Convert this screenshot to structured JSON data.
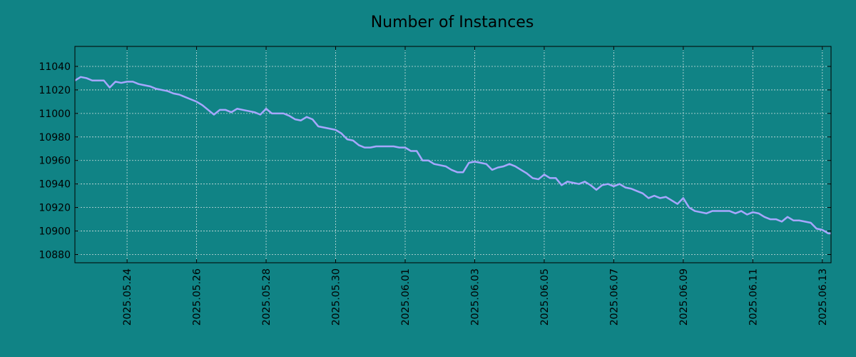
{
  "chart_data": {
    "type": "line",
    "title": "Number of Instances",
    "xlabel": "",
    "ylabel": "",
    "grid": true,
    "colors": {
      "background": "#108385",
      "line": "#a7a7ff",
      "grid": "#cfe0e0",
      "axes": "#000000"
    },
    "x_range": [
      "2025-05-22 12:00",
      "2025-06-13 06:00"
    ],
    "ylim": [
      10873,
      11057
    ],
    "y_ticks": [
      10880,
      10900,
      10920,
      10940,
      10960,
      10980,
      11000,
      11020,
      11040
    ],
    "x_ticks": [
      "2025.05.24",
      "2025.05.26",
      "2025.05.28",
      "2025.05.30",
      "2025.06.01",
      "2025.06.03",
      "2025.06.05",
      "2025.06.07",
      "2025.06.09",
      "2025.06.11",
      "2025.06.13"
    ],
    "series": [
      {
        "x": [
          "2025-05-22 12:00",
          "2025-05-22 16:00",
          "2025-05-22 20:00",
          "2025-05-23 00:00",
          "2025-05-23 04:00",
          "2025-05-23 08:00",
          "2025-05-23 12:00",
          "2025-05-23 16:00",
          "2025-05-23 20:00",
          "2025-05-24 00:00",
          "2025-05-24 04:00",
          "2025-05-24 08:00",
          "2025-05-24 12:00",
          "2025-05-24 16:00",
          "2025-05-24 20:00",
          "2025-05-25 00:00",
          "2025-05-25 04:00",
          "2025-05-25 08:00",
          "2025-05-25 12:00",
          "2025-05-25 16:00",
          "2025-05-25 20:00",
          "2025-05-26 00:00",
          "2025-05-26 04:00",
          "2025-05-26 08:00",
          "2025-05-26 12:00",
          "2025-05-26 16:00",
          "2025-05-26 20:00",
          "2025-05-27 00:00",
          "2025-05-27 04:00",
          "2025-05-27 08:00",
          "2025-05-27 12:00",
          "2025-05-27 16:00",
          "2025-05-27 20:00",
          "2025-05-28 00:00",
          "2025-05-28 04:00",
          "2025-05-28 08:00",
          "2025-05-28 12:00",
          "2025-05-28 16:00",
          "2025-05-28 20:00",
          "2025-05-29 00:00",
          "2025-05-29 04:00",
          "2025-05-29 08:00",
          "2025-05-29 12:00",
          "2025-05-29 16:00",
          "2025-05-29 20:00",
          "2025-05-30 00:00",
          "2025-05-30 04:00",
          "2025-05-30 08:00",
          "2025-05-30 12:00",
          "2025-05-30 16:00",
          "2025-05-30 20:00",
          "2025-05-31 00:00",
          "2025-05-31 04:00",
          "2025-05-31 08:00",
          "2025-05-31 12:00",
          "2025-05-31 16:00",
          "2025-05-31 20:00",
          "2025-06-01 00:00",
          "2025-06-01 04:00",
          "2025-06-01 08:00",
          "2025-06-01 12:00",
          "2025-06-01 16:00",
          "2025-06-01 20:00",
          "2025-06-02 00:00",
          "2025-06-02 04:00",
          "2025-06-02 08:00",
          "2025-06-02 12:00",
          "2025-06-02 16:00",
          "2025-06-02 20:00",
          "2025-06-03 00:00",
          "2025-06-03 04:00",
          "2025-06-03 08:00",
          "2025-06-03 12:00",
          "2025-06-03 16:00",
          "2025-06-03 20:00",
          "2025-06-04 00:00",
          "2025-06-04 04:00",
          "2025-06-04 08:00",
          "2025-06-04 12:00",
          "2025-06-04 16:00",
          "2025-06-04 20:00",
          "2025-06-05 00:00",
          "2025-06-05 04:00",
          "2025-06-05 08:00",
          "2025-06-05 12:00",
          "2025-06-05 16:00",
          "2025-06-05 20:00",
          "2025-06-06 00:00",
          "2025-06-06 04:00",
          "2025-06-06 08:00",
          "2025-06-06 12:00",
          "2025-06-06 16:00",
          "2025-06-06 20:00",
          "2025-06-07 00:00",
          "2025-06-07 04:00",
          "2025-06-07 08:00",
          "2025-06-07 12:00",
          "2025-06-07 16:00",
          "2025-06-07 20:00",
          "2025-06-08 00:00",
          "2025-06-08 04:00",
          "2025-06-08 08:00",
          "2025-06-08 12:00",
          "2025-06-08 16:00",
          "2025-06-08 20:00",
          "2025-06-09 00:00",
          "2025-06-09 04:00",
          "2025-06-09 08:00",
          "2025-06-09 12:00",
          "2025-06-09 16:00",
          "2025-06-09 20:00",
          "2025-06-10 00:00",
          "2025-06-10 04:00",
          "2025-06-10 08:00",
          "2025-06-10 12:00",
          "2025-06-10 16:00",
          "2025-06-10 20:00",
          "2025-06-11 00:00",
          "2025-06-11 04:00",
          "2025-06-11 08:00",
          "2025-06-11 12:00",
          "2025-06-11 16:00",
          "2025-06-11 20:00",
          "2025-06-12 00:00",
          "2025-06-12 04:00",
          "2025-06-12 08:00",
          "2025-06-12 12:00",
          "2025-06-12 16:00",
          "2025-06-12 20:00",
          "2025-06-13 00:00",
          "2025-06-13 04:00",
          "2025-06-13 06:00"
        ],
        "y": [
          11028,
          11031,
          11030,
          11028,
          11028,
          11028,
          11022,
          11027,
          11026,
          11027,
          11027,
          11025,
          11024,
          11023,
          11021,
          11020,
          11019,
          11017,
          11016,
          11014,
          11012,
          11010,
          11007,
          11003,
          10999,
          11003,
          11003,
          11001,
          11004,
          11003,
          11002,
          11001,
          10999,
          11004,
          11000,
          11000,
          11000,
          10998,
          10995,
          10994,
          10997,
          10995,
          10989,
          10988,
          10987,
          10986,
          10983,
          10978,
          10977,
          10973,
          10971,
          10971,
          10972,
          10972,
          10972,
          10972,
          10971,
          10971,
          10968,
          10968,
          10960,
          10960,
          10957,
          10956,
          10955,
          10952,
          10950,
          10950,
          10958,
          10959,
          10958,
          10957,
          10952,
          10954,
          10955,
          10957,
          10955,
          10952,
          10949,
          10945,
          10944,
          10948,
          10945,
          10945,
          10939,
          10942,
          10941,
          10940,
          10942,
          10939,
          10935,
          10939,
          10940,
          10938,
          10940,
          10937,
          10936,
          10934,
          10932,
          10928,
          10930,
          10928,
          10929,
          10926,
          10923,
          10928,
          10920,
          10917,
          10916,
          10915,
          10917,
          10917,
          10917,
          10917,
          10915,
          10917,
          10914,
          10916,
          10915,
          10912,
          10910,
          10910,
          10908,
          10912,
          10909,
          10909,
          10908,
          10907,
          10902,
          10901,
          10898,
          10898
        ]
      }
    ]
  }
}
